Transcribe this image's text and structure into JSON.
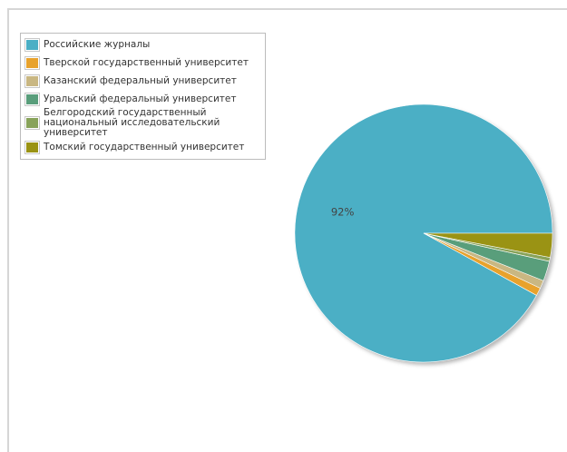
{
  "chart_data": {
    "type": "pie",
    "legend_placement": "top-left",
    "series": [
      {
        "name": "Российские журналы",
        "value": 92,
        "color": "#4bafc5",
        "label": "92%"
      },
      {
        "name": "Тверской государственный университет",
        "value": 1,
        "color": "#e8a22c",
        "label": ""
      },
      {
        "name": "Казанский федеральный университет",
        "value": 1,
        "color": "#c9b782",
        "label": ""
      },
      {
        "name": "Уральский федеральный университет",
        "value": 2.5,
        "color": "#599e7b",
        "label": ""
      },
      {
        "name": "Белгородский государственный национальный исследовательский университет",
        "value": 0.5,
        "color": "#88a35a",
        "label": ""
      },
      {
        "name": "Томский государственный университет",
        "value": 3,
        "color": "#9a9314",
        "label": ""
      }
    ]
  }
}
